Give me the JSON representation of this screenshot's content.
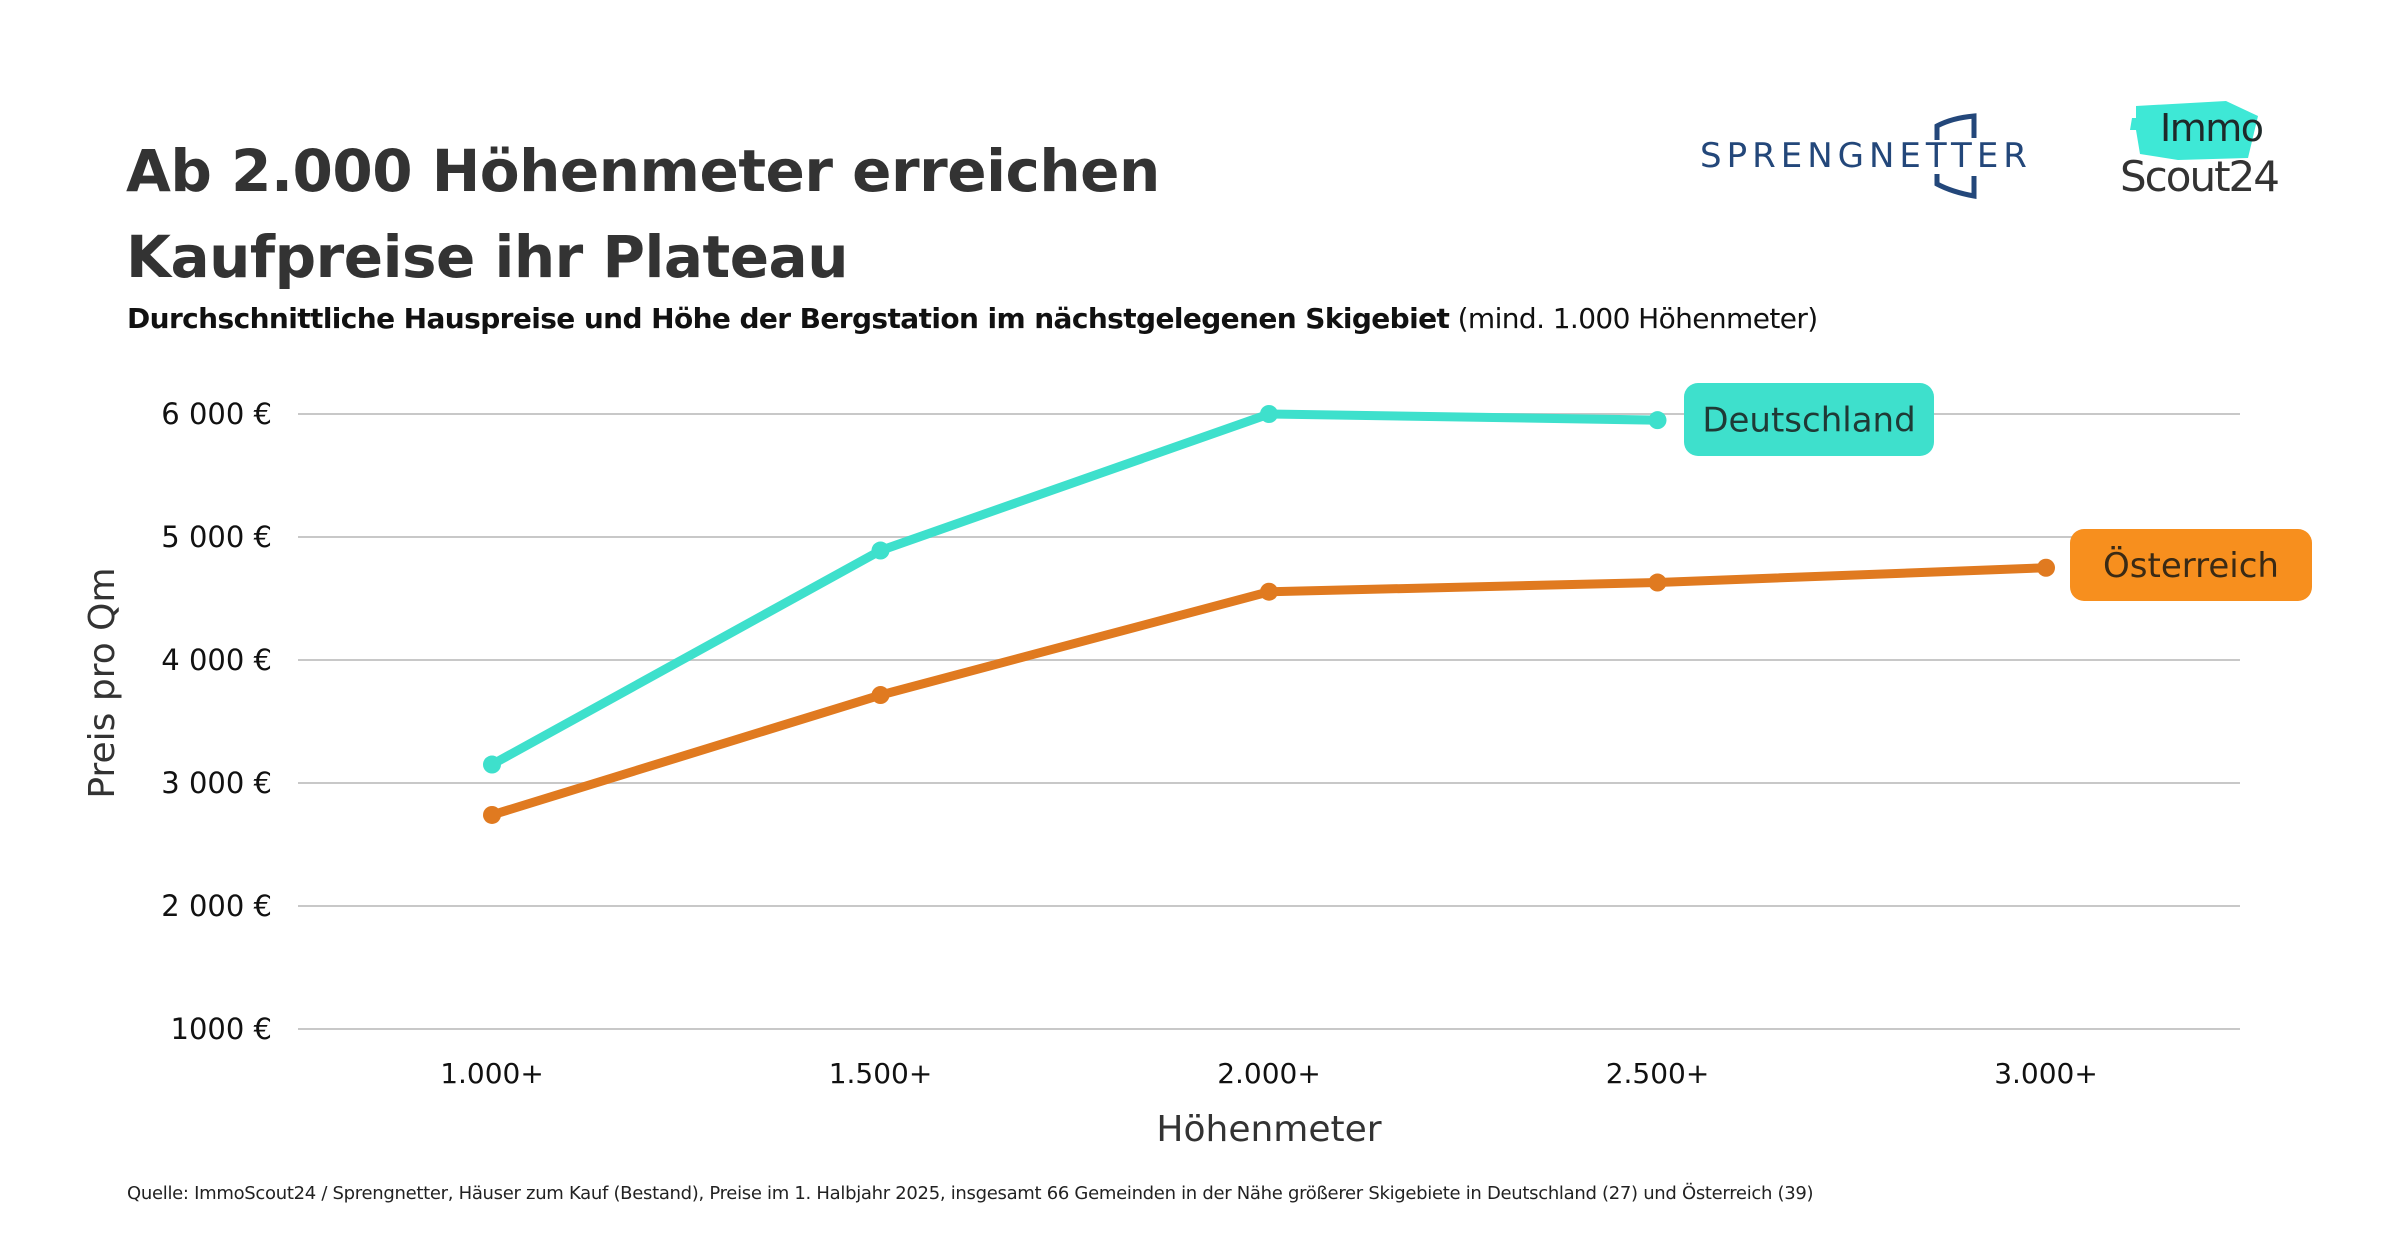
{
  "header": {
    "title_line1": "Ab 2.000 Höhenmeter erreichen",
    "title_line2": "Kaufpreise ihr Plateau",
    "subtitle_bold": "Durchschnittliche Hauspreise und Höhe der Bergstation im nächstgelegenen Skigebiet",
    "subtitle_regular": " (mind. 1.000 Höhenmeter)"
  },
  "logos": {
    "sprengnetter": "SPRENGNETTER",
    "immoscout_top": "Immo",
    "immoscout_bottom": "Scout24",
    "sprengnetter_color": "#23477a",
    "immoscout_accent": "#3ee8d6"
  },
  "footer": {
    "source": "Quelle: ImmoScout24 / Sprengnetter, Häuser zum Kauf (Bestand), Preise im 1. Halbjahr 2025, insgesamt 66 Gemeinden in der Nähe größerer Skigebiete in Deutschland (27) und Österreich (39)"
  },
  "chart_data": {
    "type": "line",
    "title": "Ab 2.000 Höhenmeter erreichen Kaufpreise ihr Plateau",
    "subtitle": "Durchschnittliche Hauspreise und Höhe der Bergstation im nächstgelegenen Skigebiet (mind. 1.000 Höhenmeter)",
    "xlabel": "Höhenmeter",
    "ylabel": "Preis pro Qm",
    "categories": [
      "1.000+",
      "1.500+",
      "2.000+",
      "2.500+",
      "3.000+"
    ],
    "ylim": [
      1000,
      6000
    ],
    "yticks": [
      1000,
      2000,
      3000,
      4000,
      5000,
      6000
    ],
    "ytick_labels": [
      "1000 €",
      "2 000 €",
      "3 000 €",
      "4 000 €",
      "5 000 €",
      "6 000 €"
    ],
    "grid": "horizontal",
    "legend": "direct-labels-right",
    "series": [
      {
        "name": "Deutschland",
        "color": "#3ee0cc",
        "label_bg": "#3ee0cc",
        "label_text_color": "#1f3a36",
        "values": [
          3150,
          4890,
          6000,
          5950,
          null
        ]
      },
      {
        "name": "Österreich",
        "color": "#e07a20",
        "label_bg": "#f78f1e",
        "label_text_color": "#3a2a15",
        "values": [
          2740,
          3715,
          4555,
          4630,
          4750
        ]
      }
    ]
  }
}
